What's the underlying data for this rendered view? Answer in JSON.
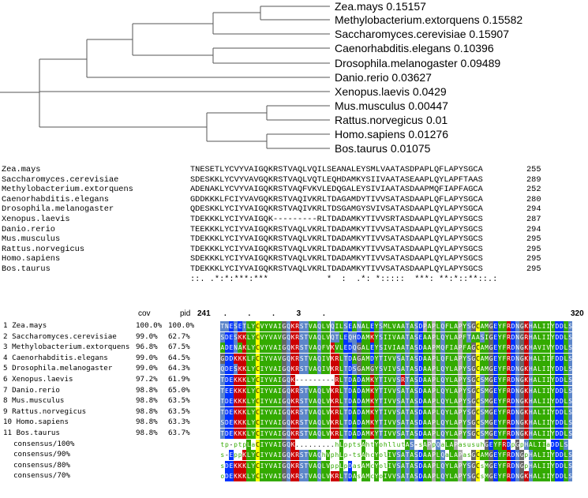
{
  "tree": {
    "leaves": [
      {
        "name": "Zea.mays",
        "dist": "0.15157"
      },
      {
        "name": "Methylobacterium.extorquens",
        "dist": "0.15582"
      },
      {
        "name": "Saccharomyces.cerevisiae",
        "dist": "0.15907"
      },
      {
        "name": "Caenorhabditis.elegans",
        "dist": "0.10396"
      },
      {
        "name": "Drosophila.melanogaster",
        "dist": "0.09489"
      },
      {
        "name": "Danio.rerio",
        "dist": "0.03627"
      },
      {
        "name": "Xenopus.laevis",
        "dist": "0.0429"
      },
      {
        "name": "Mus.musculus",
        "dist": "0.00447"
      },
      {
        "name": "Rattus.norvegicus",
        "dist": "0.01"
      },
      {
        "name": "Homo.sapiens",
        "dist": "0.01276"
      },
      {
        "name": "Bos.taurus",
        "dist": "0.01075"
      }
    ],
    "line_color": "#555555"
  },
  "alignment": {
    "rows": [
      {
        "name": "Zea.mays",
        "seq": "TNESETLYCVYVAIGQKRSTVAQLVQILSEANALEYSMLVAATASDPAPLQFLAPYSGCA",
        "len": "255"
      },
      {
        "name": "Saccharomyces.cerevisiae",
        "seq": "SDESKKLYCVYVAVGQKRSTVAQLVQTLEQHDAMKYSIIVAATASEAAPLQYLAPFTAAS",
        "len": "289"
      },
      {
        "name": "Methylobacterium.extorquens",
        "seq": "ADENAKLYCVYVAIGQKRSTVAQFVKVLEDQGALEYSIVIAATASDAAPMQFIAPFAGCA",
        "len": "252"
      },
      {
        "name": "Caenorhabditis.elegans",
        "seq": "GDDKKKLFCIYVAVGQKRSTVAQIVKRLTDAGAMDYTIVVSATASDAAPLQFLAPYSGCA",
        "len": "280"
      },
      {
        "name": "Drosophila.melanogaster",
        "seq": "QDESKKLYCIYVAIGQKRSTVAQIVKRLTDSGAMGYSVIVSATASDAAPLQYLAPYSGCA",
        "len": "294"
      },
      {
        "name": "Xenopus.laevis",
        "seq": "TDEKKKLYCIYVAIGQK---------RLTDADAMKYTIVVSRTASDAAPLQYLAPYSGCS",
        "len": "287"
      },
      {
        "name": "Danio.rerio",
        "seq": "TEEKKKLYCIYVAIGQKRSTVAQLVKRLTDADAMKYTIVVSATASDAAPLQYLAPYSGCS",
        "len": "294"
      },
      {
        "name": "Mus.musculus",
        "seq": "TDEKKKLYCIYVAIGQKRSTVAQLVKRLTDADAMKYTIVVSATASDAAPLQYLAPYSGCS",
        "len": "295"
      },
      {
        "name": "Rattus.norvegicus",
        "seq": "TDEKKKLYCIYVAIGQKRSTVAQLVKRLTDADAMKYTIVVSATASDAAPLQYLAPYSGCS",
        "len": "295"
      },
      {
        "name": "Homo.sapiens",
        "seq": "SDEKKKLYCIYVAIGQKRSTVAQLVKRLTDADAMKYTIVVSATASDAAPLQYLAPYSGCS",
        "len": "295"
      },
      {
        "name": "Bos.taurus",
        "seq": "TDEKKKLYCIYVAIGQKRSTVAQLVKRLTDADAMKYTIVVSATASDAAPLQYLAPYSGCS",
        "len": "295"
      }
    ],
    "conservation": "::. .*:*:***:***            *  :  .*: *:::::  ***: **:*::**::.:"
  },
  "mview": {
    "header": {
      "cov": "cov",
      "pid": "pid",
      "start": "241",
      "end": "320",
      "ruler": ".          .          .          3          .        "
    },
    "rows": [
      {
        "num": "1",
        "name": "Zea.mays",
        "cov": "100.0%",
        "pid": "100.0%",
        "seq": "TNESETLYCVYVAIGQKRSTVAQLVQILSEANALEYSMLVAATASDPAPLQFLAPYSGCAMGEYFRDNGKHALIIYDDLS"
      },
      {
        "num": "2",
        "name": "Saccharomyces.cerevisiae",
        "cov": "99.0%",
        "pid": "62.7%",
        "seq": "SDESKKLYCVYVAVGQKRSTVAQLVQTLEQHDAMKYSIIVAATASEAAPLQYLAPFTAASIGEYFRDNGRHALIIYDDLS"
      },
      {
        "num": "3",
        "name": "Methylobacterium.extorquens",
        "cov": "96.8%",
        "pid": "67.5%",
        "seq": "ADENAKLYCVYVAIGQKRSTVAQFVKVLEDQGALEYSIVIAATASDAAPMQFIAPFAGCAMGEYFRDNGKHAVIVYDDLS"
      },
      {
        "num": "4",
        "name": "Caenorhabditis.elegans",
        "cov": "99.0%",
        "pid": "64.5%",
        "seq": "GDDKKKLFCIYVAVGQKRSTVAQIVKRLTDAGAMDYTIVVSATASDAAPLQFLAPYSGCAMGEYFRDNGKHALIIFDDLS"
      },
      {
        "num": "5",
        "name": "Drosophila.melanogaster",
        "cov": "99.0%",
        "pid": "64.3%",
        "seq": "QDESKKLYCIYVAIGQKRSTVAQIVKRLTDSGAMGYSVIVSATASDAAPLQYLAPYSGCAMGEYFRDNGKHALIIYDDLS"
      },
      {
        "num": "6",
        "name": "Xenopus.laevis",
        "cov": "97.2%",
        "pid": "61.9%",
        "seq": "TDEKKKLYCIYVAIGQK---------RLTDADAMKYTIVVSRTASDAAPLQYLAPYSGCSMGEYFRDNGKHALIIYDDLS"
      },
      {
        "num": "7",
        "name": "Danio.rerio",
        "cov": "98.8%",
        "pid": "65.0%",
        "seq": "TEEKKKLYCIYVAIGQKRSTVAQLVKRLTDADAMKYTIVVSATASDAAPLQYLAPYSGCSMGEYFRDNGKHALIIYDDLS"
      },
      {
        "num": "8",
        "name": "Mus.musculus",
        "cov": "98.8%",
        "pid": "63.5%",
        "seq": "TDEKKKLYCIYVAIGQKRSTVAQLVKRLTDADAMKYTIVVSATASDAAPLQYLAPYSGCSMGEYFRDNGKHALIIYDDLS"
      },
      {
        "num": "9",
        "name": "Rattus.norvegicus",
        "cov": "98.8%",
        "pid": "63.5%",
        "seq": "TDEKKKLYCIYVAIGQKRSTVAQLVKRLTDADAMKYTIVVSATASDAAPLQYLAPYSGCSMGEYFRDNGKHALIIYDDLS"
      },
      {
        "num": "10",
        "name": "Homo.sapiens",
        "cov": "98.8%",
        "pid": "63.3%",
        "seq": "SDEKKKLYCIYVAIGQKRSTVAQLVKRLTDADAMKYTIVVSATASDAAPLQYLAPYSGCSMGEYFRDNGKHALIIYDDLS"
      },
      {
        "num": "11",
        "name": "Bos.taurus",
        "cov": "98.8%",
        "pid": "63.7%",
        "seq": "TDEKKKLYCIYVAIGQKRSTVAQLVKRLTDADAMKYTIVVSATASDAAPLQYLAPYSGCSMGEYFRDNGKHALIIYDDLS"
      }
    ],
    "consensus": [
      {
        "label": "consensus/100%",
        "seq": "tp-ptpLaCIYVAIGQK.........hLpptsAhtYohllutAS-sAPpQaLAPasusuhGEYFRDpGpHALIIaDDLS"
      },
      {
        "label": "consensus/90%",
        "seq": "s-EppKLYCIYVAIGQKRSTVAQhVphLp-tsAhcYolIVSATASDAAPLQaLAPasGCAMGEYFRDNGpHALIIYDDLS"
      },
      {
        "label": "consensus/80%",
        "seq": "sDEKKKLYCIYVAIGQKRSTVAQLVppLpDasAMcYolIVSATASDAAPLQYLAPYSGCsMGEYFRDNGpHALIIYDDLS"
      },
      {
        "label": "consensus/70%",
        "seq": "oDEKKKLYCIYVAIGQKRSTVAQLVKRLTDAsAMcYoIVVSATASDAAPLQYLAPYSGCsMGEYFRDNGKHALIIYDDLS"
      }
    ],
    "colors": {
      "hydrophobic": "#33aa00",
      "positive": "#cc0000",
      "negative": "#0033ff",
      "polar": "#5d86c9",
      "cys": "#ffff00",
      "small": "#33aa00",
      "pro": "#aaaaaa",
      "gly": "#666666"
    }
  }
}
